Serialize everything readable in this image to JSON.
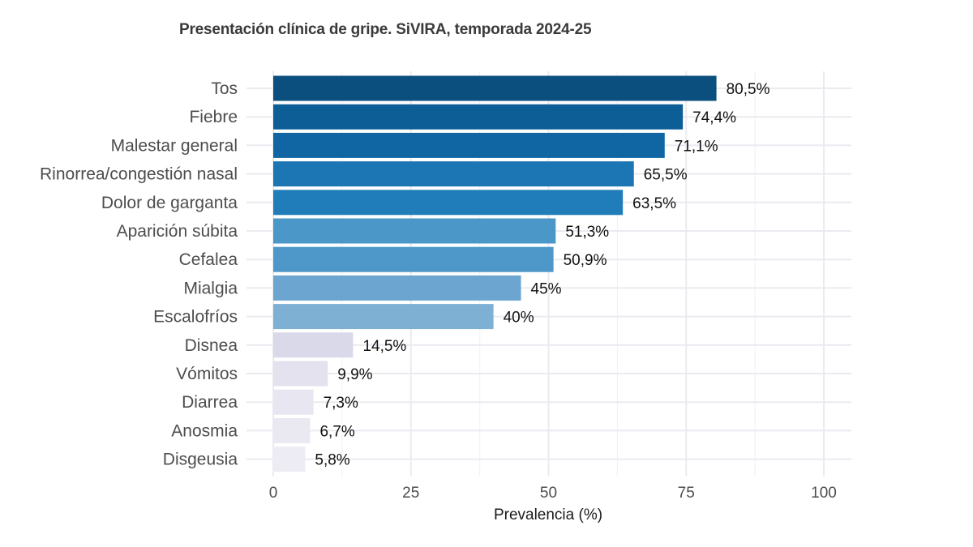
{
  "chart_data": {
    "type": "bar",
    "orientation": "horizontal",
    "title": "Presentación clínica de gripe. SiVIRA, temporada 2024-25",
    "xlabel": "Prevalencia (%)",
    "ylabel": "",
    "xlim": [
      0,
      100
    ],
    "x_ticks": [
      0,
      25,
      50,
      75,
      100
    ],
    "x_tick_labels": [
      "0",
      "25",
      "50",
      "75",
      "100"
    ],
    "grid": true,
    "legend": "none",
    "categories": [
      "Tos",
      "Fiebre",
      "Malestar general",
      "Rinorrea/congestión nasal",
      "Dolor de garganta",
      "Aparición súbita",
      "Cefalea",
      "Mialgia",
      "Escalofríos",
      "Disnea",
      "Vómitos",
      "Diarrea",
      "Anosmia",
      "Disgeusia"
    ],
    "values": [
      80.5,
      74.4,
      71.1,
      65.5,
      63.5,
      51.3,
      50.9,
      45,
      40,
      14.5,
      9.9,
      7.3,
      6.7,
      5.8
    ],
    "value_labels": [
      "80,5%",
      "74,4%",
      "71,1%",
      "65,5%",
      "63,5%",
      "51,3%",
      "50,9%",
      "45%",
      "40%",
      "14,5%",
      "9,9%",
      "7,3%",
      "6,7%",
      "5,8%"
    ],
    "bar_colors": [
      "#0b4f7e",
      "#0d5d96",
      "#0f66a3",
      "#1b76b3",
      "#217db9",
      "#4a97c8",
      "#4d98c8",
      "#6ca6d0",
      "#7eb0d4",
      "#dad9ea",
      "#e3e2ee",
      "#e8e7f1",
      "#eae9f2",
      "#edecf4"
    ]
  }
}
